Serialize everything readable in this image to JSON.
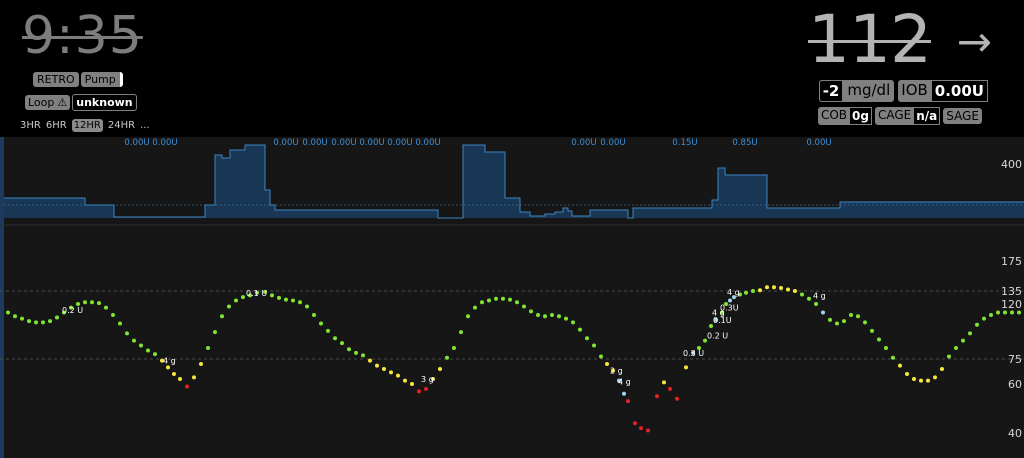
{
  "header": {
    "clock": "9:35",
    "retro_label": "RETRO",
    "pump_label": "Pump",
    "loop_label": "Loop",
    "loop_warning_icon": "warning-icon",
    "loop_status": "unknown",
    "ranges": [
      "3HR",
      "6HR",
      "12HR",
      "24HR",
      "..."
    ],
    "active_range": "12HR",
    "bg_value": "112",
    "trend_arrow": "→",
    "delta_value": "-2",
    "delta_unit": "mg/dl",
    "iob_label": "IOB",
    "iob_value": "0.00U",
    "cob_label": "COB",
    "cob_value": "0g",
    "cage_label": "CAGE",
    "cage_value": "n/a",
    "sage_label": "SAGE"
  },
  "colors": {
    "in_range": "#7fe532",
    "high": "#f7e73a",
    "low": "#e32222",
    "basal_fill": "#1a3a5c",
    "basal_line": "#3b86c3",
    "basal_label": "#3d8fd8",
    "grid_line": "#4a4a4a",
    "chart_bg": "#161616"
  },
  "chart_data": {
    "type": "scatter",
    "y_axis_labels": [
      "400",
      "175",
      "135",
      "120",
      "75",
      "60",
      "40"
    ],
    "y_ticks": [
      400,
      175,
      135,
      120,
      75,
      60,
      40
    ],
    "target_lines": [
      135,
      75
    ],
    "temp_basal_labels": [
      {
        "x": 137,
        "text": "0.00U"
      },
      {
        "x": 165,
        "text": "0.00U"
      },
      {
        "x": 286,
        "text": "0.00U"
      },
      {
        "x": 315,
        "text": "0.00U"
      },
      {
        "x": 344,
        "text": "0.00U"
      },
      {
        "x": 372,
        "text": "0.00U"
      },
      {
        "x": 400,
        "text": "0.00U"
      },
      {
        "x": 428,
        "text": "0.00U"
      },
      {
        "x": 584,
        "text": "0.00U"
      },
      {
        "x": 613,
        "text": "0.00U"
      },
      {
        "x": 685,
        "text": "0.15U"
      },
      {
        "x": 745,
        "text": "0.85U"
      },
      {
        "x": 819,
        "text": "0.00U"
      }
    ],
    "bg_points": [
      [
        8,
        113,
        "g"
      ],
      [
        15,
        110,
        "g"
      ],
      [
        22,
        108,
        "g"
      ],
      [
        29,
        106,
        "g"
      ],
      [
        36,
        105,
        "g"
      ],
      [
        43,
        105,
        "g"
      ],
      [
        50,
        106,
        "g"
      ],
      [
        57,
        109,
        "g"
      ],
      [
        64,
        113,
        "g"
      ],
      [
        71,
        117,
        "g"
      ],
      [
        78,
        120,
        "g"
      ],
      [
        85,
        122,
        "g"
      ],
      [
        92,
        122,
        "g"
      ],
      [
        99,
        121,
        "g"
      ],
      [
        106,
        117,
        "g"
      ],
      [
        113,
        111,
        "g"
      ],
      [
        120,
        104,
        "g"
      ],
      [
        127,
        96,
        "g"
      ],
      [
        134,
        90,
        "g"
      ],
      [
        141,
        86,
        "g"
      ],
      [
        148,
        82,
        "g"
      ],
      [
        155,
        79,
        "g"
      ],
      [
        162,
        74,
        "y"
      ],
      [
        168,
        70,
        "y"
      ],
      [
        174,
        66,
        "y"
      ],
      [
        180,
        63,
        "y"
      ],
      [
        187,
        59,
        "r"
      ],
      [
        194,
        64,
        "y"
      ],
      [
        201,
        72,
        "y"
      ],
      [
        208,
        84,
        "g"
      ],
      [
        215,
        97,
        "g"
      ],
      [
        222,
        110,
        "g"
      ],
      [
        229,
        118,
        "g"
      ],
      [
        236,
        124,
        "g"
      ],
      [
        243,
        128,
        "g"
      ],
      [
        250,
        130,
        "g"
      ],
      [
        257,
        133,
        "g"
      ],
      [
        265,
        134,
        "g"
      ],
      [
        272,
        130,
        "g"
      ],
      [
        279,
        127,
        "g"
      ],
      [
        286,
        125,
        "g"
      ],
      [
        293,
        124,
        "g"
      ],
      [
        300,
        122,
        "g"
      ],
      [
        307,
        118,
        "g"
      ],
      [
        314,
        111,
        "g"
      ],
      [
        321,
        104,
        "g"
      ],
      [
        328,
        98,
        "g"
      ],
      [
        335,
        92,
        "g"
      ],
      [
        342,
        88,
        "g"
      ],
      [
        349,
        83,
        "g"
      ],
      [
        356,
        80,
        "g"
      ],
      [
        363,
        78,
        "g"
      ],
      [
        370,
        74,
        "y"
      ],
      [
        377,
        71,
        "y"
      ],
      [
        384,
        69,
        "y"
      ],
      [
        391,
        67,
        "y"
      ],
      [
        398,
        65,
        "y"
      ],
      [
        405,
        62,
        "y"
      ],
      [
        412,
        60,
        "y"
      ],
      [
        419,
        57,
        "r"
      ],
      [
        426,
        58,
        "r"
      ],
      [
        433,
        63,
        "y"
      ],
      [
        440,
        69,
        "y"
      ],
      [
        447,
        76,
        "g"
      ],
      [
        454,
        84,
        "g"
      ],
      [
        461,
        97,
        "g"
      ],
      [
        468,
        110,
        "g"
      ],
      [
        475,
        117,
        "g"
      ],
      [
        482,
        122,
        "g"
      ],
      [
        489,
        124,
        "g"
      ],
      [
        496,
        126,
        "g"
      ],
      [
        503,
        126,
        "g"
      ],
      [
        510,
        125,
        "g"
      ],
      [
        517,
        122,
        "g"
      ],
      [
        524,
        118,
        "g"
      ],
      [
        531,
        114,
        "g"
      ],
      [
        538,
        111,
        "g"
      ],
      [
        545,
        110,
        "g"
      ],
      [
        552,
        111,
        "g"
      ],
      [
        559,
        110,
        "g"
      ],
      [
        566,
        108,
        "g"
      ],
      [
        573,
        105,
        "g"
      ],
      [
        580,
        99,
        "g"
      ],
      [
        587,
        92,
        "g"
      ],
      [
        594,
        86,
        "g"
      ],
      [
        601,
        77,
        "g"
      ],
      [
        607,
        72,
        "y"
      ],
      [
        613,
        68,
        "y"
      ],
      [
        619,
        62,
        "b"
      ],
      [
        624,
        56,
        "b"
      ],
      [
        628,
        53,
        "r"
      ],
      [
        635,
        44,
        "r"
      ],
      [
        641,
        42,
        "r"
      ],
      [
        648,
        41,
        "r"
      ],
      [
        657,
        55,
        "r"
      ],
      [
        664,
        61,
        "y"
      ],
      [
        670,
        58,
        "r"
      ],
      [
        677,
        54,
        "r"
      ],
      [
        686,
        70,
        "y"
      ],
      [
        693,
        80,
        "b"
      ],
      [
        699,
        84,
        "g"
      ],
      [
        705,
        90,
        "g"
      ],
      [
        711,
        102,
        "g"
      ],
      [
        716,
        107,
        "b"
      ],
      [
        722,
        113,
        "g"
      ],
      [
        726,
        120,
        "g"
      ],
      [
        730,
        124,
        "b"
      ],
      [
        734,
        128,
        "b"
      ],
      [
        740,
        131,
        "g"
      ],
      [
        746,
        133,
        "g"
      ],
      [
        753,
        135,
        "g"
      ],
      [
        760,
        136,
        "y"
      ],
      [
        767,
        140,
        "y"
      ],
      [
        774,
        140,
        "y"
      ],
      [
        781,
        139,
        "y"
      ],
      [
        788,
        137,
        "y"
      ],
      [
        795,
        135,
        "y"
      ],
      [
        802,
        131,
        "g"
      ],
      [
        809,
        126,
        "g"
      ],
      [
        816,
        120,
        "g"
      ],
      [
        823,
        113,
        "b"
      ],
      [
        830,
        107,
        "g"
      ],
      [
        837,
        104,
        "g"
      ],
      [
        844,
        106,
        "g"
      ],
      [
        851,
        111,
        "g"
      ],
      [
        858,
        110,
        "g"
      ],
      [
        865,
        105,
        "g"
      ],
      [
        872,
        98,
        "g"
      ],
      [
        879,
        91,
        "g"
      ],
      [
        886,
        84,
        "g"
      ],
      [
        893,
        76,
        "g"
      ],
      [
        900,
        71,
        "y"
      ],
      [
        907,
        66,
        "y"
      ],
      [
        914,
        63,
        "y"
      ],
      [
        921,
        62,
        "y"
      ],
      [
        928,
        62,
        "y"
      ],
      [
        935,
        64,
        "y"
      ],
      [
        942,
        69,
        "y"
      ],
      [
        949,
        77,
        "g"
      ],
      [
        956,
        84,
        "g"
      ],
      [
        963,
        90,
        "g"
      ],
      [
        970,
        96,
        "g"
      ],
      [
        977,
        103,
        "g"
      ],
      [
        984,
        108,
        "g"
      ],
      [
        991,
        111,
        "g"
      ],
      [
        998,
        113,
        "g"
      ],
      [
        1005,
        113,
        "g"
      ],
      [
        1012,
        113,
        "g"
      ],
      [
        1019,
        113,
        "g"
      ]
    ],
    "annotations": [
      {
        "x": 62,
        "y": 111,
        "text": "0.2 U"
      },
      {
        "x": 163,
        "y": 71,
        "text": "4 g"
      },
      {
        "x": 246,
        "y": 127,
        "text": "0.1 U"
      },
      {
        "x": 421,
        "y": 60,
        "text": "3 g"
      },
      {
        "x": 610,
        "y": 65,
        "text": "2 g"
      },
      {
        "x": 618,
        "y": 59,
        "text": "4 g"
      },
      {
        "x": 683,
        "y": 76,
        "text": "0.3 U"
      },
      {
        "x": 707,
        "y": 90,
        "text": "0.2 U"
      },
      {
        "x": 713,
        "y": 103,
        "text": "0.1U"
      },
      {
        "x": 712,
        "y": 109,
        "text": "4 g"
      },
      {
        "x": 720,
        "y": 113,
        "text": "0.3U"
      },
      {
        "x": 727,
        "y": 128,
        "text": "4 g"
      },
      {
        "x": 813,
        "y": 124,
        "text": "4 g"
      }
    ],
    "grid": true,
    "basal_steps": [
      [
        4,
        198
      ],
      [
        85,
        198
      ],
      [
        85,
        205
      ],
      [
        114,
        205
      ],
      [
        114,
        217
      ],
      [
        205,
        217
      ],
      [
        205,
        205
      ],
      [
        215,
        205
      ],
      [
        215,
        155
      ],
      [
        222,
        155
      ],
      [
        222,
        158
      ],
      [
        230,
        158
      ],
      [
        230,
        150
      ],
      [
        245,
        150
      ],
      [
        245,
        145
      ],
      [
        265,
        145
      ],
      [
        265,
        190
      ],
      [
        270,
        190
      ],
      [
        270,
        205
      ],
      [
        275,
        205
      ],
      [
        275,
        210
      ],
      [
        438,
        210
      ],
      [
        438,
        218
      ],
      [
        463,
        218
      ],
      [
        463,
        145
      ],
      [
        485,
        145
      ],
      [
        485,
        152
      ],
      [
        505,
        152
      ],
      [
        505,
        198
      ],
      [
        520,
        198
      ],
      [
        520,
        212
      ],
      [
        530,
        212
      ],
      [
        530,
        216
      ],
      [
        545,
        216
      ],
      [
        545,
        214
      ],
      [
        555,
        214
      ],
      [
        555,
        212
      ],
      [
        563,
        212
      ],
      [
        563,
        208
      ],
      [
        568,
        208
      ],
      [
        568,
        211
      ],
      [
        572,
        211
      ],
      [
        572,
        216
      ],
      [
        590,
        216
      ],
      [
        590,
        210
      ],
      [
        628,
        210
      ],
      [
        628,
        218
      ],
      [
        633,
        218
      ],
      [
        633,
        208
      ],
      [
        712,
        208
      ],
      [
        712,
        200
      ],
      [
        718,
        200
      ],
      [
        718,
        168
      ],
      [
        725,
        168
      ],
      [
        725,
        175
      ],
      [
        767,
        175
      ],
      [
        767,
        208
      ],
      [
        840,
        208
      ],
      [
        840,
        202
      ],
      [
        1024,
        202
      ]
    ]
  }
}
